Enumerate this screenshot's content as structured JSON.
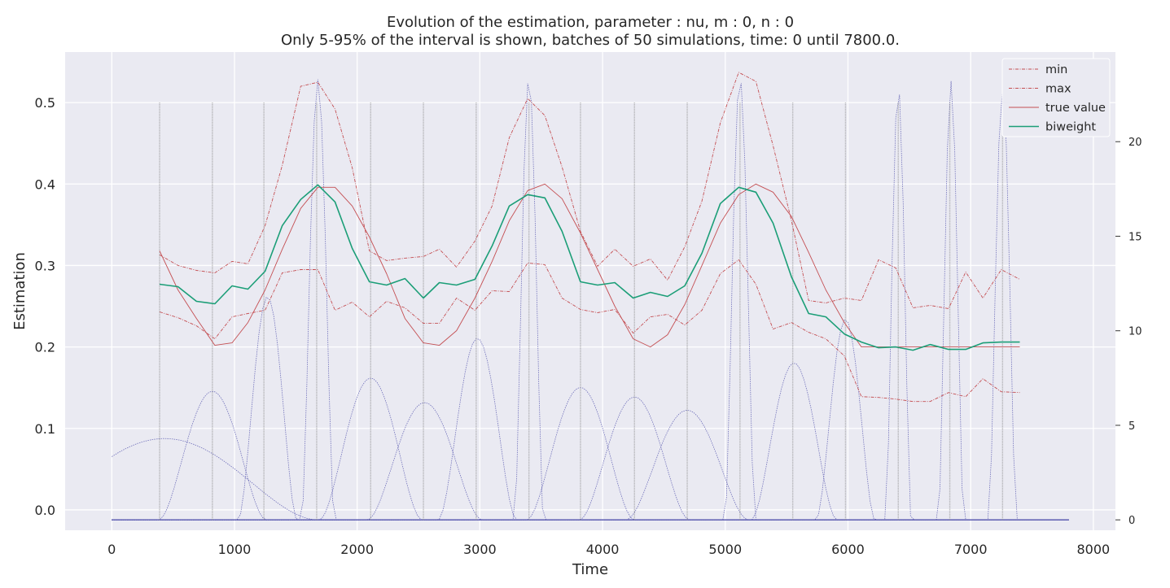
{
  "chart_data": {
    "type": "line",
    "title": "Evolution of the estimation, parameter : nu, m : 0, n : 0",
    "subtitle": "Only 5-95% of the interval is shown, batches of 50 simulations, time: 0 until 7800.0.",
    "xlabel": "Time",
    "ylabel": "Estimation",
    "xlim": [
      -380,
      8180
    ],
    "ylim": [
      -0.025,
      0.562
    ],
    "xticks": [
      0,
      1000,
      2000,
      3000,
      4000,
      5000,
      6000,
      7000,
      8000
    ],
    "yticks": [
      0.0,
      0.1,
      0.2,
      0.3,
      0.4,
      0.5
    ],
    "y2lim": [
      -0.55,
      24.74
    ],
    "y2ticks": [
      0,
      5,
      10,
      15,
      20
    ],
    "grid": true,
    "legend_position": "top-right",
    "colors": {
      "background": "#eaeaf2",
      "grid": "#ffffff",
      "min": "#c44e52",
      "max": "#c44e52",
      "true": "#c44e52",
      "biweight": "#1b9e77",
      "kernel": "#5a5ab0",
      "vline": "#8c8c8c"
    },
    "x": [
      390,
      540,
      690,
      840,
      980,
      1110,
      1250,
      1390,
      1540,
      1680,
      1820,
      1960,
      2100,
      2240,
      2390,
      2540,
      2670,
      2810,
      2960,
      3100,
      3240,
      3390,
      3530,
      3670,
      3820,
      3960,
      4100,
      4250,
      4390,
      4530,
      4670,
      4810,
      4960,
      5110,
      5250,
      5390,
      5540,
      5680,
      5820,
      5970,
      6110,
      6250,
      6390,
      6530,
      6670,
      6820,
      6960,
      7100,
      7250,
      7400
    ],
    "series": [
      {
        "name": "min",
        "style": "dashdot",
        "values": [
          0.243,
          0.236,
          0.226,
          0.21,
          0.237,
          0.241,
          0.245,
          0.291,
          0.295,
          0.295,
          0.245,
          0.255,
          0.237,
          0.256,
          0.248,
          0.229,
          0.229,
          0.26,
          0.245,
          0.269,
          0.268,
          0.303,
          0.301,
          0.26,
          0.246,
          0.242,
          0.246,
          0.217,
          0.237,
          0.24,
          0.227,
          0.245,
          0.29,
          0.307,
          0.277,
          0.222,
          0.23,
          0.218,
          0.21,
          0.189,
          0.139,
          0.138,
          0.136,
          0.133,
          0.133,
          0.144,
          0.139,
          0.161,
          0.145,
          0.144
        ]
      },
      {
        "name": "max",
        "style": "dashdot",
        "values": [
          0.313,
          0.3,
          0.294,
          0.291,
          0.305,
          0.302,
          0.349,
          0.423,
          0.52,
          0.525,
          0.492,
          0.42,
          0.318,
          0.306,
          0.309,
          0.311,
          0.32,
          0.298,
          0.33,
          0.373,
          0.457,
          0.505,
          0.484,
          0.421,
          0.342,
          0.299,
          0.32,
          0.299,
          0.308,
          0.282,
          0.323,
          0.379,
          0.475,
          0.537,
          0.526,
          0.447,
          0.355,
          0.257,
          0.254,
          0.26,
          0.257,
          0.307,
          0.297,
          0.248,
          0.251,
          0.247,
          0.292,
          0.26,
          0.295,
          0.283
        ]
      },
      {
        "name": "true value",
        "style": "solid-thin",
        "values": [
          0.318,
          0.27,
          0.235,
          0.202,
          0.205,
          0.23,
          0.27,
          0.32,
          0.37,
          0.396,
          0.396,
          0.373,
          0.335,
          0.29,
          0.235,
          0.205,
          0.202,
          0.22,
          0.26,
          0.305,
          0.355,
          0.392,
          0.4,
          0.382,
          0.34,
          0.295,
          0.25,
          0.21,
          0.2,
          0.215,
          0.252,
          0.3,
          0.352,
          0.387,
          0.4,
          0.39,
          0.36,
          0.316,
          0.27,
          0.23,
          0.2,
          0.2,
          0.2,
          0.2,
          0.2,
          0.2,
          0.2,
          0.2,
          0.2,
          0.2
        ]
      },
      {
        "name": "biweight",
        "style": "solid",
        "values": [
          0.277,
          0.274,
          0.256,
          0.253,
          0.275,
          0.271,
          0.293,
          0.349,
          0.381,
          0.399,
          0.378,
          0.321,
          0.28,
          0.276,
          0.284,
          0.26,
          0.279,
          0.276,
          0.283,
          0.324,
          0.373,
          0.387,
          0.383,
          0.342,
          0.28,
          0.276,
          0.279,
          0.26,
          0.267,
          0.262,
          0.275,
          0.315,
          0.376,
          0.396,
          0.39,
          0.352,
          0.286,
          0.241,
          0.237,
          0.216,
          0.206,
          0.199,
          0.2,
          0.196,
          0.203,
          0.197,
          0.197,
          0.205,
          0.206,
          0.206
        ]
      }
    ],
    "kernels": [
      {
        "center": 430,
        "height": 4.3,
        "width": 1250
      },
      {
        "center": 820,
        "height": 6.8,
        "width": 440
      },
      {
        "center": 1270,
        "height": 11.8,
        "width": 240
      },
      {
        "center": 1680,
        "height": 23.3,
        "width": 135
      },
      {
        "center": 2110,
        "height": 7.5,
        "width": 420
      },
      {
        "center": 2550,
        "height": 6.2,
        "width": 470
      },
      {
        "center": 2980,
        "height": 9.6,
        "width": 320
      },
      {
        "center": 3400,
        "height": 23.4,
        "width": 120
      },
      {
        "center": 3820,
        "height": 7.0,
        "width": 440
      },
      {
        "center": 4260,
        "height": 6.5,
        "width": 450
      },
      {
        "center": 4690,
        "height": 5.8,
        "width": 500
      },
      {
        "center": 5120,
        "height": 23.4,
        "width": 125
      },
      {
        "center": 5560,
        "height": 8.3,
        "width": 350
      },
      {
        "center": 5980,
        "height": 10.6,
        "width": 240
      },
      {
        "center": 6410,
        "height": 22.9,
        "width": 105
      },
      {
        "center": 6840,
        "height": 23.2,
        "width": 105
      },
      {
        "center": 7260,
        "height": 22.9,
        "width": 115
      }
    ],
    "vlines": [
      390,
      820,
      1240,
      1670,
      2110,
      2540,
      2970,
      3400,
      3820,
      4260,
      4690,
      5120,
      5550,
      5980,
      6410,
      6830,
      7260
    ],
    "vline_top": 22.1
  }
}
